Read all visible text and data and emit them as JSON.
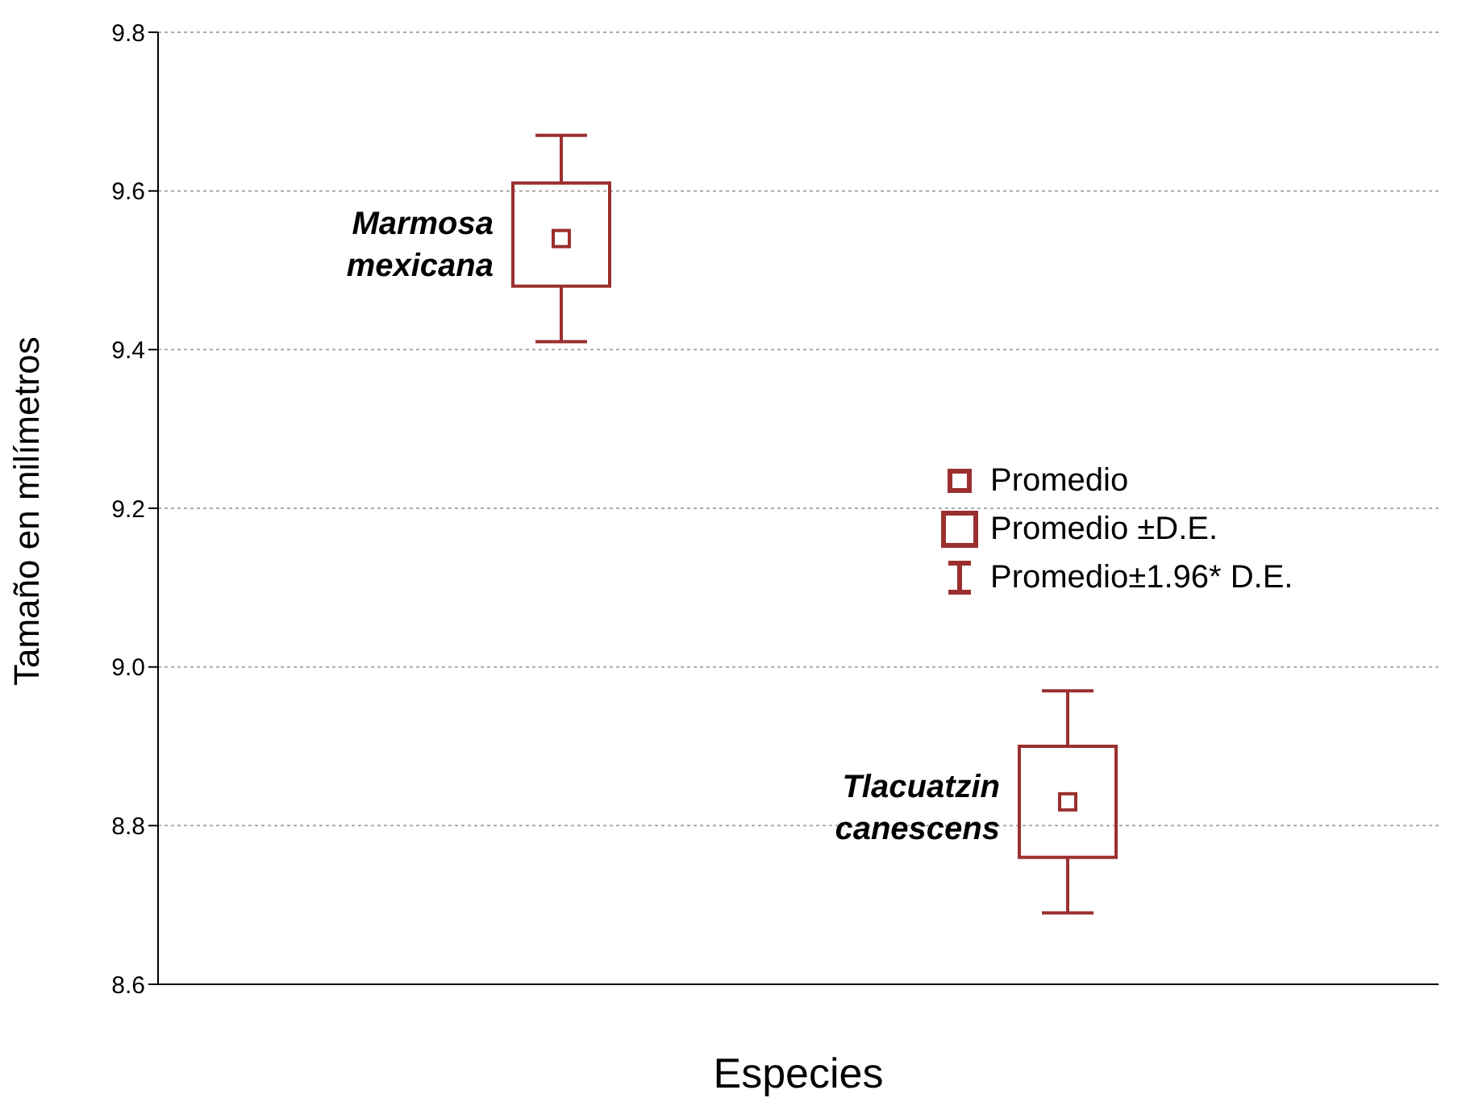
{
  "chart_data": {
    "type": "box",
    "xlabel": "Especies",
    "ylabel": "Tamaño en milímetros",
    "categories": [
      null,
      null
    ],
    "boxes": [
      {
        "low": 9.41,
        "q1": 9.48,
        "median": 9.54,
        "q3": 9.61,
        "high": 9.67
      },
      {
        "low": 8.69,
        "q1": 8.76,
        "median": 8.83,
        "q3": 8.9,
        "high": 8.97
      }
    ],
    "color": "#9b2f2f",
    "ylim": [
      8.6,
      9.8
    ],
    "yticks": [
      8.6,
      8.8,
      {
        "value": 9,
        "label": "9.0"
      },
      9.2,
      9.4,
      9.6,
      9.8
    ],
    "tick_labels": "y",
    "grid": "y",
    "annotations": [
      "Marmosa mexicana",
      "Tlacuatzin canescens",
      "Promedio",
      "Promedio ±D.E.",
      "Promedio±1.96* D.E."
    ]
  }
}
